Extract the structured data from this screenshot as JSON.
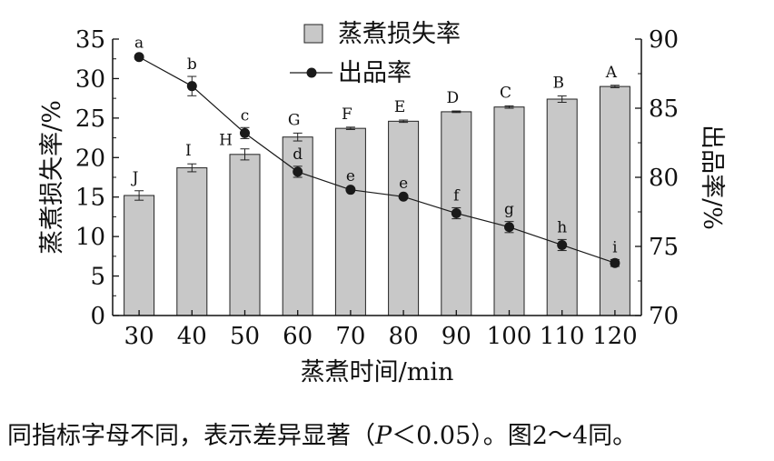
{
  "chart_data": {
    "type": "bar+line",
    "xlabel": "蒸煮时间/min",
    "categories": [
      "30",
      "40",
      "50",
      "60",
      "70",
      "80",
      "90",
      "100",
      "110",
      "120"
    ],
    "y_left": {
      "label": "蒸煮损失率/%",
      "lim": [
        0,
        35
      ],
      "ticks": [
        0,
        5,
        10,
        15,
        20,
        25,
        30,
        35
      ]
    },
    "y_right": {
      "label": "出品率/%",
      "lim": [
        70,
        90
      ],
      "ticks": [
        70,
        75,
        80,
        85,
        90
      ]
    },
    "series": [
      {
        "name": "蒸煮损失率",
        "kind": "bar",
        "axis": "left",
        "color": "#c8c8c8",
        "values": [
          15.2,
          18.7,
          20.4,
          22.6,
          23.7,
          24.6,
          25.8,
          26.4,
          27.4,
          29.0
        ],
        "errors": [
          0.6,
          0.5,
          0.7,
          0.5,
          0.15,
          0.15,
          0.1,
          0.15,
          0.4,
          0.15
        ],
        "letters": [
          "J",
          "I",
          "H",
          "G",
          "F",
          "E",
          "D",
          "C",
          "B",
          "A"
        ]
      },
      {
        "name": "出品率",
        "kind": "line",
        "axis": "right",
        "color": "#1a1a1a",
        "values": [
          88.7,
          86.6,
          83.2,
          80.4,
          79.1,
          78.6,
          77.4,
          76.4,
          75.1,
          73.8
        ],
        "errors": [
          0.15,
          0.7,
          0.4,
          0.4,
          0.1,
          0.1,
          0.4,
          0.4,
          0.4,
          0.25
        ],
        "letters": [
          "a",
          "b",
          "c",
          "d",
          "e",
          "e",
          "f",
          "g",
          "h",
          "i"
        ]
      }
    ],
    "legend": "top-center"
  },
  "caption": {
    "text_before": "同指标字母不同，表示差异显著（",
    "p_symbol": "P",
    "text_after": "＜0.05）。图2～4同。"
  }
}
